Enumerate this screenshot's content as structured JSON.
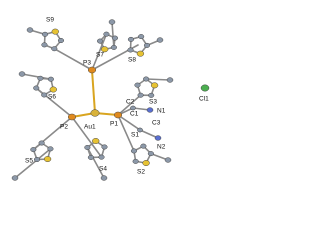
{
  "labels": {
    "S9": "S9",
    "S7": "S7",
    "S8": "S8",
    "P3": "P3",
    "S6": "S6",
    "Au1": "Au1",
    "P2": "P2",
    "P1": "P1",
    "C2": "C2",
    "S3": "S3",
    "N1": "N1",
    "C1": "C1",
    "C3": "C3",
    "S1": "S1",
    "N2": "N2",
    "S5": "S5",
    "S4": "S4",
    "S2": "S2",
    "Cl1": "Cl1"
  }
}
